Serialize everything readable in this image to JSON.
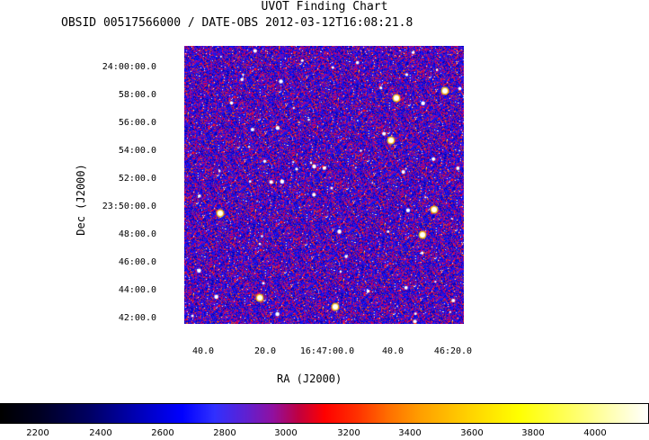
{
  "header": {
    "title": "UVOT Finding Chart",
    "subtitle": "OBSID 00517566000 / DATE-OBS 2012-03-12T16:08:21.8"
  },
  "axes": {
    "ra_title": "RA (J2000)",
    "dec_title": "Dec (J2000)",
    "dec_ticks": [
      "24:00:00.0",
      "58:00.0",
      "56:00.0",
      "54:00.0",
      "52:00.0",
      "23:50:00.0",
      "48:00.0",
      "46:00.0",
      "44:00.0",
      "42:00.0"
    ],
    "ra_ticks": [
      "40.0",
      "20.0",
      "16:47:00.0",
      "40.0",
      "46:20.0"
    ]
  },
  "colorbar": {
    "ticks": [
      "2200",
      "2400",
      "2600",
      "2800",
      "3000",
      "3200",
      "3400",
      "3600",
      "3800",
      "4000"
    ],
    "range": [
      2100,
      4150
    ]
  },
  "image": {
    "colormap": "black-blue-red-yellow-white",
    "background_color": "#0000c8"
  }
}
